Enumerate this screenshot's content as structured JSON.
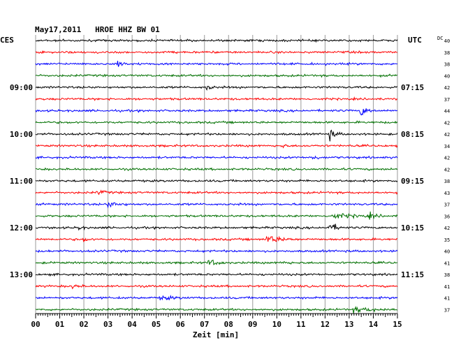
{
  "chart_data": {
    "type": "line",
    "title": "May17,2011   HROE HHZ BW 01",
    "left_axis_label": "CES",
    "right_axis_label": "UTC",
    "dc_label": "DC",
    "xlabel": "Zeit [min]",
    "xlim": [
      0,
      15
    ],
    "x_ticks": [
      "00",
      "01",
      "02",
      "03",
      "04",
      "05",
      "06",
      "07",
      "08",
      "09",
      "10",
      "11",
      "12",
      "13",
      "14",
      "15"
    ],
    "line_colors": [
      "#000000",
      "#ff0000",
      "#0000ff",
      "#007000"
    ],
    "left_time_labels": [
      {
        "row": 4,
        "text": "09:00"
      },
      {
        "row": 8,
        "text": "10:00"
      },
      {
        "row": 12,
        "text": "11:00"
      },
      {
        "row": 16,
        "text": "12:00"
      },
      {
        "row": 20,
        "text": "13:00"
      }
    ],
    "right_time_labels": [
      {
        "row": 4,
        "text": "07:15"
      },
      {
        "row": 8,
        "text": "08:15"
      },
      {
        "row": 12,
        "text": "09:15"
      },
      {
        "row": 16,
        "text": "10:15"
      },
      {
        "row": 20,
        "text": "11:15"
      }
    ],
    "dc_values": [
      "40",
      "38",
      "38",
      "40",
      "42",
      "37",
      "44",
      "42",
      "42",
      "34",
      "42",
      "42",
      "38",
      "43",
      "37",
      "36",
      "42",
      "35",
      "40",
      "41",
      "38",
      "41",
      "41",
      "37"
    ],
    "events": [
      {
        "row": 2,
        "minute": 3.4,
        "amplitude": 2.2,
        "duration": 0.5
      },
      {
        "row": 4,
        "minute": 7.1,
        "amplitude": 1.8,
        "duration": 0.4
      },
      {
        "row": 6,
        "minute": 13.5,
        "amplitude": 3.2,
        "duration": 0.6
      },
      {
        "row": 8,
        "minute": 12.2,
        "amplitude": 3.0,
        "duration": 0.5
      },
      {
        "row": 9,
        "minute": 10.2,
        "amplitude": 1.2,
        "duration": 0.3
      },
      {
        "row": 10,
        "minute": 11.5,
        "amplitude": 1.6,
        "duration": 0.4
      },
      {
        "row": 13,
        "minute": 2.6,
        "amplitude": 1.4,
        "duration": 0.6
      },
      {
        "row": 14,
        "minute": 3.0,
        "amplitude": 1.6,
        "duration": 1.0
      },
      {
        "row": 15,
        "minute": 12.3,
        "amplitude": 1.8,
        "duration": 1.6
      },
      {
        "row": 15,
        "minute": 13.8,
        "amplitude": 1.4,
        "duration": 0.8
      },
      {
        "row": 16,
        "minute": 1.8,
        "amplitude": 1.6,
        "duration": 0.3
      },
      {
        "row": 16,
        "minute": 12.2,
        "amplitude": 3.2,
        "duration": 0.6
      },
      {
        "row": 17,
        "minute": 9.6,
        "amplitude": 2.6,
        "duration": 1.2
      },
      {
        "row": 17,
        "minute": 2.0,
        "amplitude": 1.2,
        "duration": 0.4
      },
      {
        "row": 19,
        "minute": 7.2,
        "amplitude": 2.0,
        "duration": 0.8
      },
      {
        "row": 19,
        "minute": 10.2,
        "amplitude": 1.0,
        "duration": 0.6
      },
      {
        "row": 21,
        "minute": 1.5,
        "amplitude": 1.2,
        "duration": 0.6
      },
      {
        "row": 22,
        "minute": 5.2,
        "amplitude": 1.1,
        "duration": 1.2
      },
      {
        "row": 23,
        "minute": 13.2,
        "amplitude": 1.4,
        "duration": 2.0
      }
    ]
  }
}
